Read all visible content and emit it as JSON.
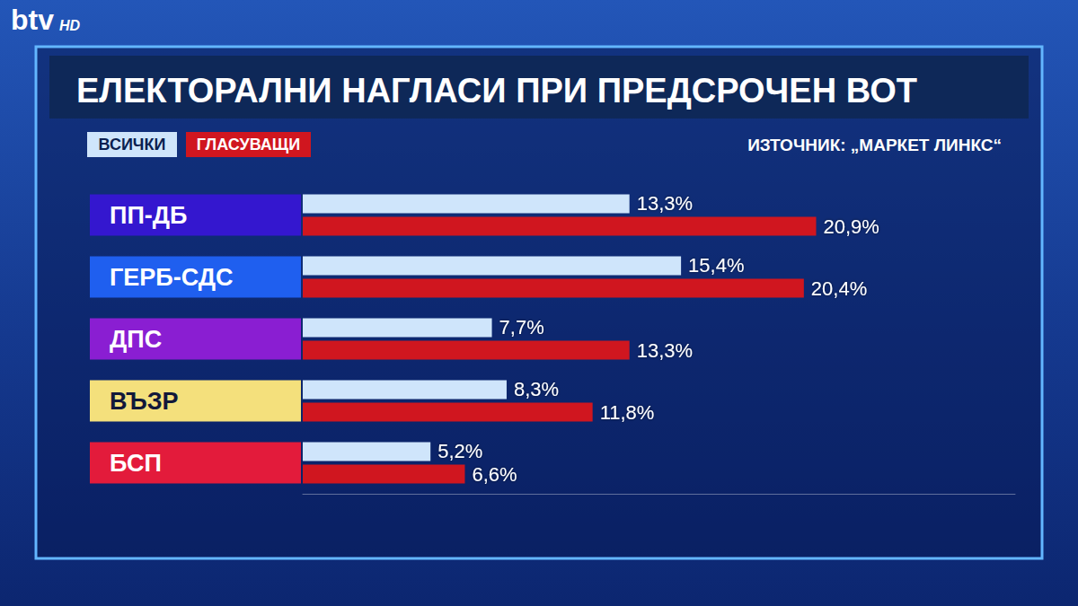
{
  "header": {
    "logo": "btv",
    "logo_suffix": "HD"
  },
  "chart_data": {
    "type": "bar",
    "orientation": "horizontal",
    "title": "ЕЛЕКТОРАЛНИ НАГЛАСИ ПРИ ПРЕДСРОЧЕН ВОТ",
    "source": "ИЗТОЧНИК: „МАРКЕТ ЛИНКС“",
    "categories": [
      "ПП-ДБ",
      "ГЕРБ-СДС",
      "ДПС",
      "ВЪЗР",
      "БСП"
    ],
    "series": [
      {
        "name": "ВСИЧКИ",
        "color": "#cfe5fb",
        "values": [
          13.3,
          15.4,
          7.7,
          8.3,
          5.2
        ],
        "value_labels": [
          "13,3%",
          "15,4%",
          "7,7%",
          "8,3%",
          "5,2%"
        ]
      },
      {
        "name": "ГЛАСУВАЩИ",
        "color": "#d0161f",
        "values": [
          20.9,
          20.4,
          13.3,
          11.8,
          6.6
        ],
        "value_labels": [
          "20,9%",
          "20,4%",
          "13,3%",
          "11,8%",
          "6,6%"
        ]
      }
    ],
    "xlim": [
      0,
      29
    ],
    "grid": false,
    "legend": "upper left",
    "data_labels": true,
    "tick_labels": false
  }
}
